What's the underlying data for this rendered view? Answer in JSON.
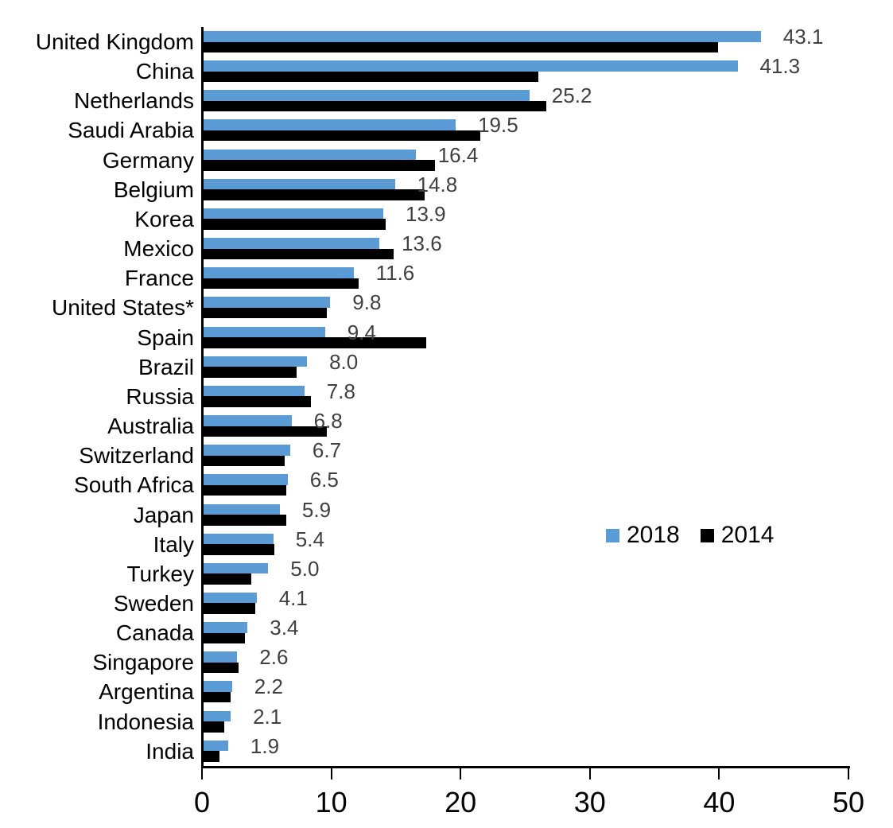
{
  "chart_data": {
    "type": "bar",
    "orientation": "horizontal",
    "title": "",
    "categories": [
      "United Kingdom",
      "China",
      "Netherlands",
      "Saudi Arabia",
      "Germany",
      "Belgium",
      "Korea",
      "Mexico",
      "France",
      "United States*",
      "Spain",
      "Brazil",
      "Russia",
      "Australia",
      "Switzerland",
      "South Africa",
      "Japan",
      "Italy",
      "Turkey",
      "Sweden",
      "Canada",
      "Singapore",
      "Argentina",
      "Indonesia",
      "India"
    ],
    "series": [
      {
        "name": "2018",
        "color": "#5B9BD5",
        "data_labels_shown": true,
        "values": [
          43.1,
          41.3,
          25.2,
          19.5,
          16.4,
          14.8,
          13.9,
          13.6,
          11.6,
          9.8,
          9.4,
          8.0,
          7.8,
          6.8,
          6.7,
          6.5,
          5.9,
          5.4,
          5.0,
          4.1,
          3.4,
          2.6,
          2.2,
          2.1,
          1.9
        ]
      },
      {
        "name": "2014",
        "color": "#000000",
        "data_labels_shown": false,
        "values": [
          39.8,
          25.9,
          26.5,
          21.4,
          17.9,
          17.1,
          14.1,
          14.7,
          12.0,
          9.5,
          17.2,
          7.2,
          8.3,
          9.5,
          6.3,
          6.4,
          6.4,
          5.5,
          3.7,
          4.0,
          3.2,
          2.7,
          2.1,
          1.6,
          1.2
        ]
      }
    ],
    "xlim": [
      0,
      50
    ],
    "x_ticks": [
      "0",
      "10",
      "20",
      "30",
      "40",
      "50"
    ],
    "grid": false,
    "legend_position": "center-right"
  },
  "legend": {
    "items": [
      {
        "label": "2018",
        "color": "#5B9BD5"
      },
      {
        "label": "2014",
        "color": "#000000"
      }
    ]
  },
  "styles": {
    "value_label_color": "#404040",
    "axis_color": "#000000"
  }
}
